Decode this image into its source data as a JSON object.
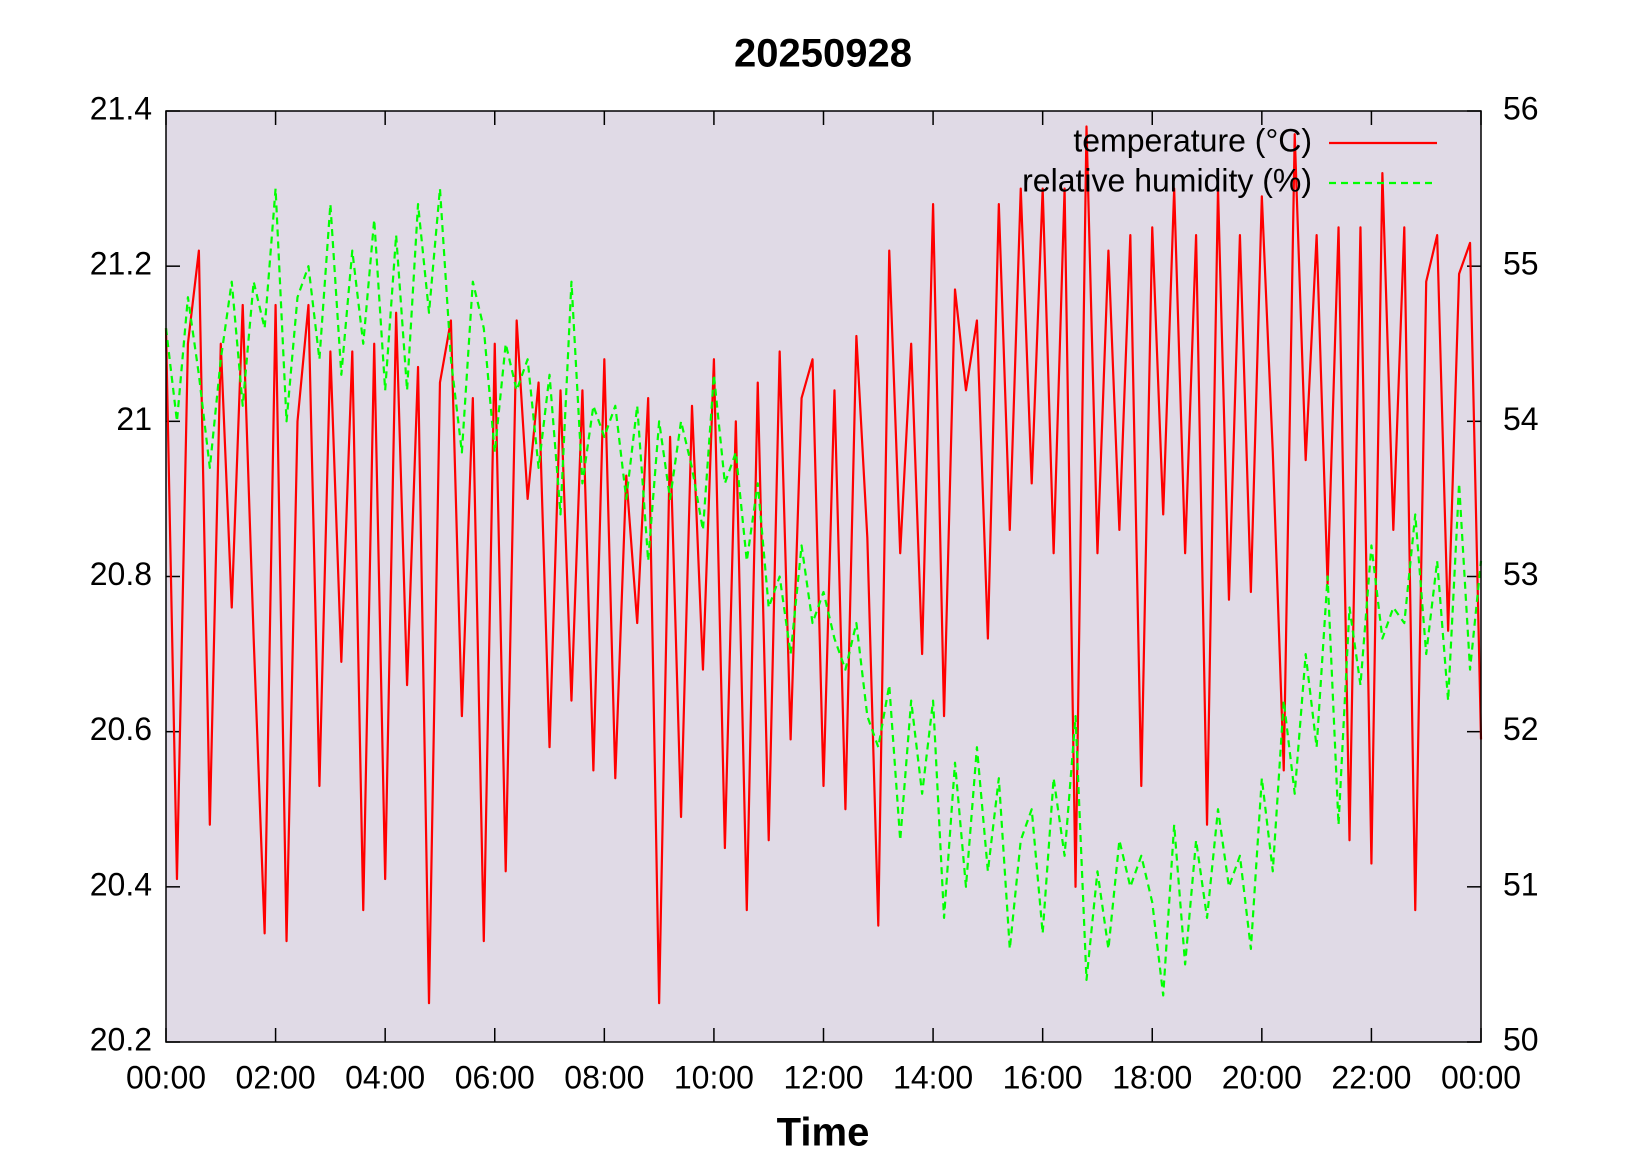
{
  "chart_data": {
    "type": "line",
    "title": "20250928",
    "xlabel": "Time",
    "background": "#e0dae6",
    "legend": "top right",
    "x": [
      0,
      0.2,
      0.4,
      0.6,
      0.8,
      1,
      1.2,
      1.4,
      1.6,
      1.8,
      2,
      2.2,
      2.4,
      2.6,
      2.8,
      3,
      3.2,
      3.4,
      3.6,
      3.8,
      4,
      4.2,
      4.4,
      4.6,
      4.8,
      5,
      5.2,
      5.4,
      5.6,
      5.8,
      6,
      6.2,
      6.4,
      6.6,
      6.8,
      7,
      7.2,
      7.4,
      7.6,
      7.8,
      8,
      8.2,
      8.4,
      8.6,
      8.8,
      9,
      9.2,
      9.4,
      9.6,
      9.8,
      10,
      10.2,
      10.4,
      10.6,
      10.8,
      11,
      11.2,
      11.4,
      11.6,
      11.8,
      12,
      12.2,
      12.4,
      12.6,
      12.8,
      13,
      13.2,
      13.4,
      13.6,
      13.8,
      14,
      14.2,
      14.4,
      14.6,
      14.8,
      15,
      15.2,
      15.4,
      15.6,
      15.8,
      16,
      16.2,
      16.4,
      16.6,
      16.8,
      17,
      17.2,
      17.4,
      17.6,
      17.8,
      18,
      18.2,
      18.4,
      18.6,
      18.8,
      19,
      19.2,
      19.4,
      19.6,
      19.8,
      20,
      20.2,
      20.4,
      20.6,
      20.8,
      21,
      21.2,
      21.4,
      21.6,
      21.8,
      22,
      22.2,
      22.4,
      22.6,
      22.8,
      23,
      23.2,
      23.4,
      23.6,
      23.8,
      24
    ],
    "xlim": [
      0,
      24
    ],
    "xticks": [
      {
        "value": 0,
        "label": "00:00"
      },
      {
        "value": 2,
        "label": "02:00"
      },
      {
        "value": 4,
        "label": "04:00"
      },
      {
        "value": 6,
        "label": "06:00"
      },
      {
        "value": 8,
        "label": "08:00"
      },
      {
        "value": 10,
        "label": "10:00"
      },
      {
        "value": 12,
        "label": "12:00"
      },
      {
        "value": 14,
        "label": "14:00"
      },
      {
        "value": 16,
        "label": "16:00"
      },
      {
        "value": 18,
        "label": "18:00"
      },
      {
        "value": 20,
        "label": "20:00"
      },
      {
        "value": 22,
        "label": "22:00"
      },
      {
        "value": 24,
        "label": "00:00"
      }
    ],
    "ylim": [
      20.2,
      21.4
    ],
    "yticks": [
      20.2,
      20.4,
      20.6,
      20.8,
      21,
      21.2,
      21.4
    ],
    "y2lim": [
      50,
      56
    ],
    "y2ticks": [
      50,
      51,
      52,
      53,
      54,
      55,
      56
    ],
    "series": [
      {
        "name": "temperature (°C)",
        "color": "#ff0000",
        "dashed": false,
        "values": [
          21.12,
          20.41,
          21.1,
          21.22,
          20.48,
          21.1,
          20.76,
          21.15,
          20.72,
          20.34,
          21.15,
          20.33,
          21.0,
          21.15,
          20.53,
          21.09,
          20.69,
          21.09,
          20.37,
          21.1,
          20.41,
          21.14,
          20.66,
          21.07,
          20.25,
          21.05,
          21.13,
          20.62,
          21.03,
          20.33,
          21.1,
          20.42,
          21.13,
          20.9,
          21.05,
          20.58,
          21.04,
          20.64,
          21.04,
          20.55,
          21.08,
          20.54,
          20.93,
          20.74,
          21.03,
          20.25,
          20.98,
          20.49,
          21.02,
          20.68,
          21.08,
          20.45,
          21.0,
          20.37,
          21.05,
          20.46,
          21.09,
          20.59,
          21.03,
          21.08,
          20.53,
          21.04,
          20.5,
          21.11,
          20.85,
          20.35,
          21.22,
          20.83,
          21.1,
          20.7,
          21.28,
          20.62,
          21.17,
          21.04,
          21.13,
          20.72,
          21.28,
          20.86,
          21.3,
          20.92,
          21.3,
          20.83,
          21.3,
          20.4,
          21.38,
          20.83,
          21.22,
          20.86,
          21.24,
          20.53,
          21.25,
          20.88,
          21.3,
          20.83,
          21.24,
          20.48,
          21.3,
          20.77,
          21.24,
          20.78,
          21.29,
          20.96,
          20.55,
          21.37,
          20.95,
          21.24,
          20.79,
          21.25,
          20.46,
          21.25,
          20.43,
          21.32,
          20.86,
          21.25,
          20.37,
          21.18,
          21.24,
          20.73,
          21.19,
          21.23,
          20.59
        ]
      },
      {
        "name": "relative humidity (%)",
        "color": "#00ff00",
        "dashed": true,
        "axis": "y2",
        "values": [
          54.6,
          54.0,
          54.8,
          54.3,
          53.7,
          54.4,
          54.9,
          54.1,
          54.9,
          54.6,
          55.5,
          54.0,
          54.8,
          55.0,
          54.4,
          55.4,
          54.3,
          55.1,
          54.5,
          55.3,
          54.2,
          55.2,
          54.2,
          55.4,
          54.7,
          55.5,
          54.4,
          53.8,
          54.9,
          54.6,
          53.8,
          54.5,
          54.2,
          54.4,
          53.7,
          54.3,
          53.4,
          54.9,
          53.6,
          54.1,
          53.9,
          54.1,
          53.5,
          54.1,
          53.1,
          54.0,
          53.5,
          54.0,
          53.7,
          53.3,
          54.3,
          53.6,
          53.8,
          53.1,
          53.6,
          52.8,
          53.0,
          52.5,
          53.2,
          52.7,
          52.9,
          52.6,
          52.4,
          52.7,
          52.1,
          51.9,
          52.3,
          51.3,
          52.2,
          51.6,
          52.2,
          50.8,
          51.8,
          51.0,
          51.9,
          51.1,
          51.7,
          50.6,
          51.3,
          51.5,
          50.7,
          51.7,
          51.2,
          52.1,
          50.4,
          51.1,
          50.6,
          51.3,
          51.0,
          51.2,
          50.9,
          50.3,
          51.4,
          50.5,
          51.3,
          50.8,
          51.5,
          51.0,
          51.2,
          50.6,
          51.7,
          51.1,
          52.2,
          51.6,
          52.5,
          51.9,
          53.0,
          51.4,
          52.8,
          52.3,
          53.2,
          52.6,
          52.8,
          52.7,
          53.4,
          52.5,
          53.1,
          52.2,
          53.6,
          52.4,
          53.1
        ]
      }
    ]
  }
}
